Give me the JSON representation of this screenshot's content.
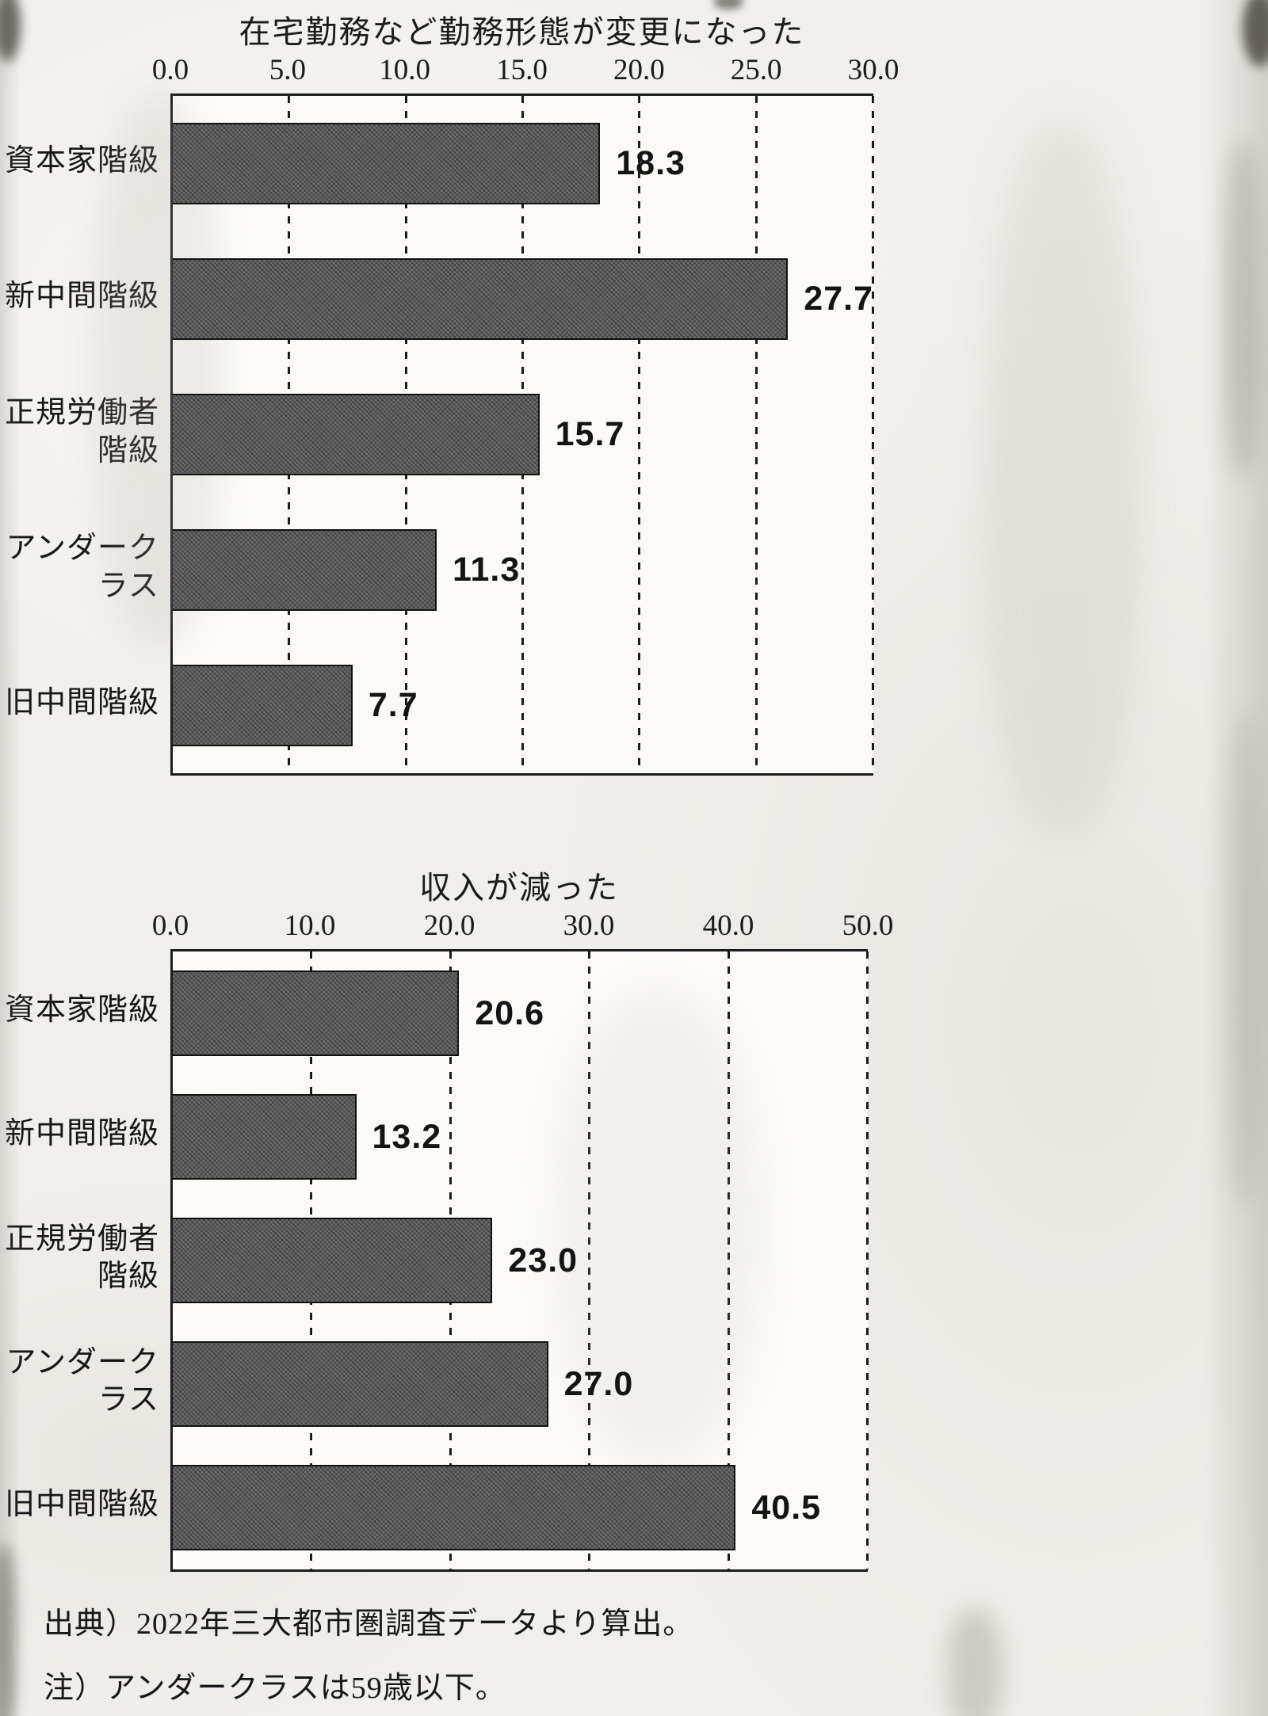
{
  "page": {
    "footer": {
      "source": "出典）2022年三大都市圏調査データより算出。",
      "note": "注）アンダークラスは59歳以下。"
    }
  },
  "chart_data": [
    {
      "type": "bar",
      "orientation": "horizontal",
      "title": "在宅勤務など勤務形態が変更になった",
      "categories": [
        "資本家階級",
        "新中間階級",
        "正規労働者\n階級",
        "アンダークラス",
        "旧中間階級"
      ],
      "values": [
        18.3,
        27.7,
        15.7,
        11.3,
        7.7
      ],
      "value_labels": [
        "18.3",
        "27.7",
        "15.7",
        "11.3",
        "7.7"
      ],
      "xlim": [
        0,
        30
      ],
      "xticks": [
        0.0,
        5.0,
        10.0,
        15.0,
        20.0,
        25.0,
        30.0
      ],
      "xtick_labels": [
        "0.0",
        "5.0",
        "10.0",
        "15.0",
        "20.0",
        "25.0",
        "30.0"
      ],
      "grid": "dashed-vertical",
      "legend": "none"
    },
    {
      "type": "bar",
      "orientation": "horizontal",
      "title": "収入が減った",
      "categories": [
        "資本家階級",
        "新中間階級",
        "正規労働者\n階級",
        "アンダークラス",
        "旧中間階級"
      ],
      "values": [
        20.6,
        13.2,
        23.0,
        27.0,
        40.5
      ],
      "value_labels": [
        "20.6",
        "13.2",
        "23.0",
        "27.0",
        "40.5"
      ],
      "xlim": [
        0,
        50
      ],
      "xticks": [
        0.0,
        10.0,
        20.0,
        30.0,
        40.0,
        50.0
      ],
      "xtick_labels": [
        "0.0",
        "10.0",
        "20.0",
        "30.0",
        "40.0",
        "50.0"
      ],
      "grid": "dashed-vertical",
      "legend": "none"
    }
  ],
  "colors": {
    "bar": "#616161",
    "axis": "#1c1c1c",
    "paper": "#f1efeb",
    "plot_background": "#fbfaf7"
  }
}
